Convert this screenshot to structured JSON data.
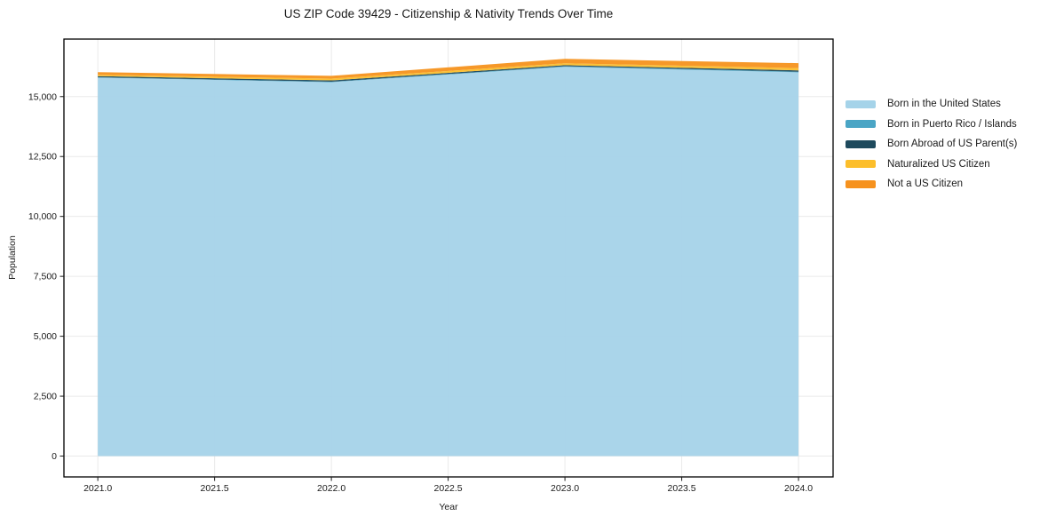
{
  "figure": {
    "background": "#ffffff",
    "spine_color": "#000000",
    "grid_color": "#e4e4e4",
    "tick_color": "#1a1a1a"
  },
  "chart_data": {
    "type": "area",
    "stacked": true,
    "title": "US ZIP Code 39429 - Citizenship & Nativity Trends Over Time",
    "xlabel": "Year",
    "ylabel": "Population",
    "x": [
      2021,
      2022,
      2023,
      2024
    ],
    "series": [
      {
        "name": "Born in the United States",
        "color": "#A5D3E9",
        "values": [
          15790,
          15600,
          16240,
          16010
        ]
      },
      {
        "name": "Born in Puerto Rico / Islands",
        "color": "#4AA5C5",
        "values": [
          15,
          20,
          25,
          30
        ]
      },
      {
        "name": "Born Abroad of US Parent(s)",
        "color": "#1E4A5D",
        "values": [
          50,
          55,
          45,
          55
        ]
      },
      {
        "name": "Naturalized US Citizen",
        "color": "#FCBE2B",
        "values": [
          55,
          75,
          80,
          95
        ]
      },
      {
        "name": "Not a US Citizen",
        "color": "#F6921E",
        "values": [
          110,
          115,
          185,
          205
        ]
      }
    ],
    "totals": [
      16020,
      15865,
      16575,
      16395
    ],
    "xlim": [
      2020.855,
      2024.148
    ],
    "ylim": [
      -870,
      17400
    ],
    "x_ticks": {
      "values": [
        2021.0,
        2021.5,
        2022.0,
        2022.5,
        2023.0,
        2023.5,
        2024.0
      ],
      "labels": [
        "2021.0",
        "2021.5",
        "2022.0",
        "2022.5",
        "2023.0",
        "2023.5",
        "2024.0"
      ]
    },
    "y_ticks": {
      "values": [
        0,
        2500,
        5000,
        7500,
        10000,
        12500,
        15000
      ],
      "labels": [
        "0",
        "2,500",
        "5,000",
        "7,500",
        "10,000",
        "12,500",
        "15,000"
      ]
    },
    "grid": true,
    "legend_position": "right-outside"
  }
}
